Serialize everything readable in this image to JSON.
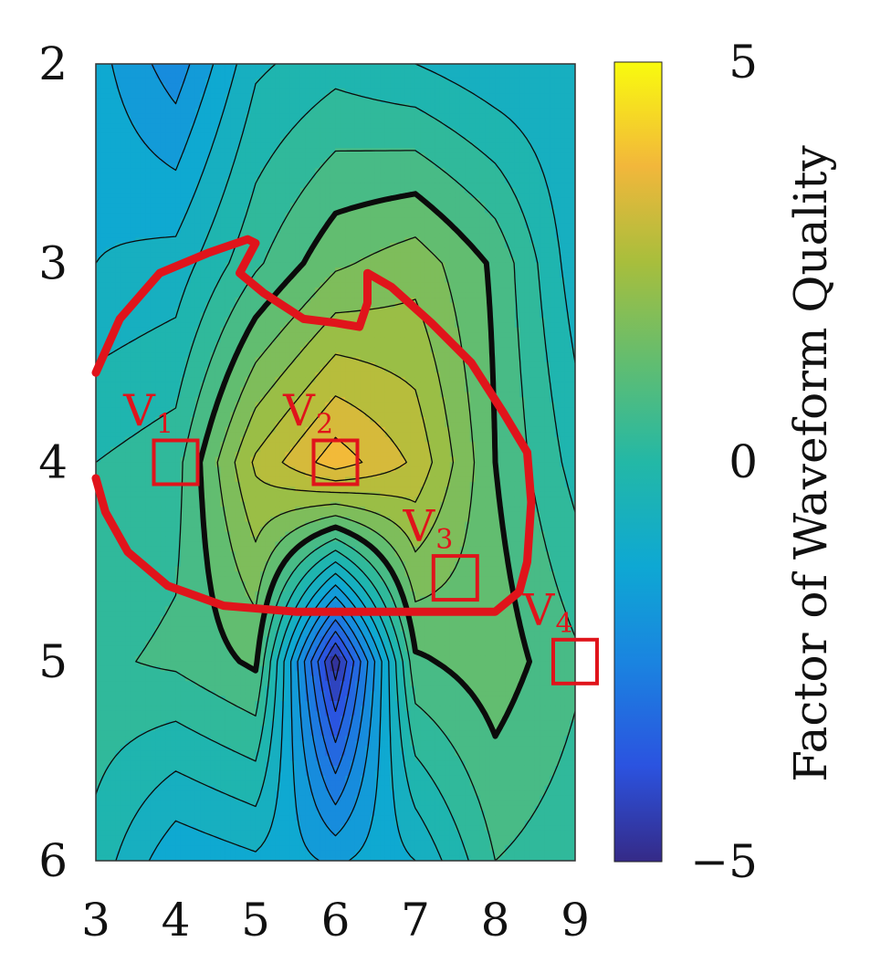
{
  "chart_data": {
    "type": "contour",
    "x": [
      3,
      4,
      5,
      6,
      7,
      8,
      9
    ],
    "y": [
      2,
      3,
      4,
      5,
      6
    ],
    "xlim": [
      3,
      9
    ],
    "ylim": [
      2,
      6
    ],
    "y_axis_inverted": true,
    "z": [
      [
        -1.3,
        -2.3,
        -0.6,
        -0.2,
        -0.5,
        -0.9,
        -1.0
      ],
      [
        -1.0,
        -0.8,
        0.4,
        1.4,
        1.8,
        0.9,
        -0.8
      ],
      [
        0.0,
        0.3,
        2.6,
        3.8,
        2.9,
        1.0,
        -0.2
      ],
      [
        0.4,
        0.6,
        1.1,
        -4.8,
        0.9,
        1.3,
        0.6
      ],
      [
        -0.2,
        -1.4,
        -1.1,
        -1.6,
        -1.0,
        0.5,
        0.2
      ]
    ],
    "colorbar": {
      "range": [
        -5,
        5
      ],
      "ticks": [
        5,
        0,
        -5
      ],
      "tick_labels": [
        "5",
        "0",
        "−5"
      ],
      "label": "Factor of Waveform Quality",
      "colormap": "parula"
    },
    "x_ticks": [
      "3",
      "4",
      "5",
      "6",
      "7",
      "8",
      "9"
    ],
    "y_ticks": [
      "2",
      "3",
      "4",
      "5",
      "6"
    ],
    "highlight_level": 1.0,
    "annotations": {
      "markers": [
        {
          "label": "V",
          "sub": "1",
          "x": 4.0,
          "y": 4.0
        },
        {
          "label": "V",
          "sub": "2",
          "x": 6.0,
          "y": 4.0
        },
        {
          "label": "V",
          "sub": "3",
          "x": 7.5,
          "y": 4.58
        },
        {
          "label": "V",
          "sub": "4",
          "x": 9.0,
          "y": 5.0
        }
      ],
      "region_outline_color": "#e0141b",
      "region_outline": [
        [
          3.0,
          3.55
        ],
        [
          3.3,
          3.28
        ],
        [
          3.8,
          3.05
        ],
        [
          4.4,
          2.95
        ],
        [
          4.9,
          2.88
        ],
        [
          5.0,
          2.9
        ],
        [
          4.8,
          3.05
        ],
        [
          5.1,
          3.15
        ],
        [
          5.6,
          3.28
        ],
        [
          6.0,
          3.3
        ],
        [
          6.3,
          3.32
        ],
        [
          6.4,
          3.2
        ],
        [
          6.4,
          3.05
        ],
        [
          6.7,
          3.12
        ],
        [
          7.2,
          3.3
        ],
        [
          7.7,
          3.5
        ],
        [
          8.1,
          3.75
        ],
        [
          8.4,
          3.95
        ],
        [
          8.45,
          4.2
        ],
        [
          8.4,
          4.5
        ],
        [
          8.3,
          4.65
        ],
        [
          8.0,
          4.75
        ],
        [
          7.4,
          4.75
        ],
        [
          6.5,
          4.75
        ],
        [
          5.5,
          4.75
        ],
        [
          4.6,
          4.72
        ],
        [
          3.9,
          4.62
        ],
        [
          3.4,
          4.45
        ],
        [
          3.12,
          4.25
        ],
        [
          3.0,
          4.08
        ]
      ]
    }
  }
}
